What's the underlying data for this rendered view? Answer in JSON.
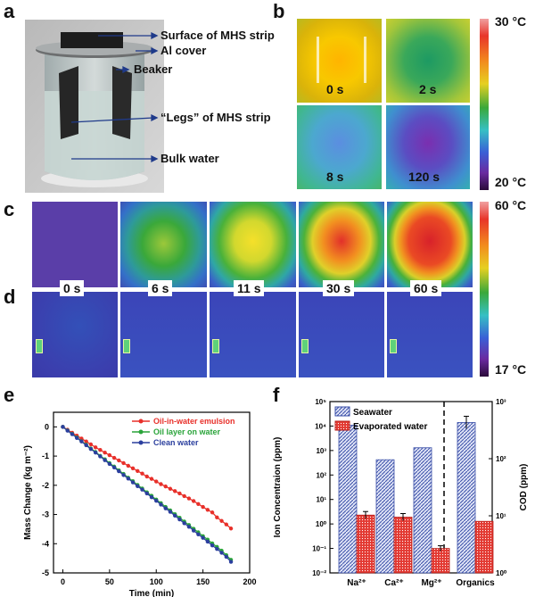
{
  "panel_labels": {
    "a": "a",
    "b": "b",
    "c": "c",
    "d": "d",
    "e": "e",
    "f": "f"
  },
  "panel_a": {
    "annotations": [
      "Surface of MHS strip",
      "Al cover",
      "Beaker",
      "“Legs” of MHS strip",
      "Bulk water"
    ]
  },
  "panel_b": {
    "times": [
      "0 s",
      "2 s",
      "8 s",
      "120 s"
    ],
    "colorbar": {
      "max": "30 °C",
      "min": "20 °C"
    }
  },
  "panel_cd": {
    "times": [
      "0 s",
      "6 s",
      "11 s",
      "30 s",
      "60 s"
    ],
    "colorbar": {
      "max": "60 °C",
      "min": "17 °C"
    }
  },
  "colors": {
    "red": "#e8302a",
    "green": "#2aa43a",
    "blue": "#2b3f9e",
    "hatch": "#3a4fa8",
    "evap": "#e33a33"
  },
  "chart_data": [
    {
      "type": "line",
      "panel": "e",
      "xlabel": "Time (min)",
      "ylabel": "Mass Change (kg m⁻²)",
      "xlim": [
        -10,
        200
      ],
      "ylim": [
        -5,
        0.5
      ],
      "xticks": [
        "0",
        "50",
        "100",
        "150",
        "200"
      ],
      "yticks": [
        "0",
        "-1",
        "-2",
        "-3",
        "-4",
        "-5"
      ],
      "series": [
        {
          "name": "Oil-in-water emulsion",
          "color": "#e8302a",
          "x": [
            0,
            5,
            10,
            15,
            20,
            25,
            30,
            35,
            40,
            45,
            50,
            55,
            60,
            65,
            70,
            75,
            80,
            85,
            90,
            95,
            100,
            105,
            110,
            115,
            120,
            125,
            130,
            135,
            140,
            145,
            150,
            155,
            160,
            165,
            170,
            175,
            180
          ],
          "y": [
            0,
            -0.1,
            -0.2,
            -0.3,
            -0.4,
            -0.5,
            -0.6,
            -0.7,
            -0.79,
            -0.88,
            -0.97,
            -1.06,
            -1.15,
            -1.24,
            -1.33,
            -1.42,
            -1.51,
            -1.6,
            -1.7,
            -1.78,
            -1.87,
            -1.96,
            -2.04,
            -2.12,
            -2.2,
            -2.28,
            -2.37,
            -2.45,
            -2.54,
            -2.64,
            -2.74,
            -2.84,
            -2.93,
            -3.1,
            -3.22,
            -3.34,
            -3.48
          ]
        },
        {
          "name": "Oil layer on water",
          "color": "#2aa43a",
          "x": [
            0,
            5,
            10,
            15,
            20,
            25,
            30,
            35,
            40,
            45,
            50,
            55,
            60,
            65,
            70,
            75,
            80,
            85,
            90,
            95,
            100,
            105,
            110,
            115,
            120,
            125,
            130,
            135,
            140,
            145,
            150,
            155,
            160,
            165,
            170,
            175,
            180
          ],
          "y": [
            0,
            -0.12,
            -0.24,
            -0.36,
            -0.49,
            -0.61,
            -0.74,
            -0.86,
            -0.99,
            -1.11,
            -1.24,
            -1.36,
            -1.49,
            -1.61,
            -1.74,
            -1.86,
            -1.99,
            -2.11,
            -2.24,
            -2.36,
            -2.49,
            -2.61,
            -2.74,
            -2.86,
            -2.99,
            -3.11,
            -3.24,
            -3.36,
            -3.49,
            -3.61,
            -3.74,
            -3.86,
            -3.99,
            -4.11,
            -4.24,
            -4.39,
            -4.55
          ]
        },
        {
          "name": "Clean water",
          "color": "#2b3f9e",
          "x": [
            0,
            5,
            10,
            15,
            20,
            25,
            30,
            35,
            40,
            45,
            50,
            55,
            60,
            65,
            70,
            75,
            80,
            85,
            90,
            95,
            100,
            105,
            110,
            115,
            120,
            125,
            130,
            135,
            140,
            145,
            150,
            155,
            160,
            165,
            170,
            175,
            180
          ],
          "y": [
            0,
            -0.13,
            -0.25,
            -0.38,
            -0.5,
            -0.63,
            -0.76,
            -0.88,
            -1.01,
            -1.14,
            -1.27,
            -1.39,
            -1.52,
            -1.65,
            -1.77,
            -1.9,
            -2.03,
            -2.15,
            -2.28,
            -2.41,
            -2.53,
            -2.66,
            -2.79,
            -2.91,
            -3.04,
            -3.17,
            -3.3,
            -3.42,
            -3.55,
            -3.68,
            -3.8,
            -3.93,
            -4.06,
            -4.18,
            -4.31,
            -4.45,
            -4.62
          ]
        }
      ]
    },
    {
      "type": "bar",
      "panel": "f",
      "categories": [
        "Na²⁺",
        "Ca²⁺",
        "Mg²⁺",
        "Organics"
      ],
      "ylabel": "Ion Concentraion (ppm)",
      "y2label": "COD (ppm)",
      "yscale": "log",
      "ylim_exp": [
        -2,
        5
      ],
      "y2lim_exp": [
        0,
        3
      ],
      "yticks": [
        "10⁻²",
        "10⁻¹",
        "10⁰",
        "10¹",
        "10²",
        "10³",
        "10⁴",
        "10⁵"
      ],
      "y2ticks": [
        "10⁰",
        "10¹",
        "10²",
        "10³"
      ],
      "series": [
        {
          "name": "Seawater",
          "values": [
            10800,
            420,
            1300,
            430
          ],
          "axis": [
            "left",
            "left",
            "left",
            "right"
          ]
        },
        {
          "name": "Evaporated water",
          "values": [
            2.3,
            1.9,
            0.1,
            8
          ],
          "axis": [
            "left",
            "left",
            "left",
            "right"
          ]
        }
      ]
    }
  ]
}
